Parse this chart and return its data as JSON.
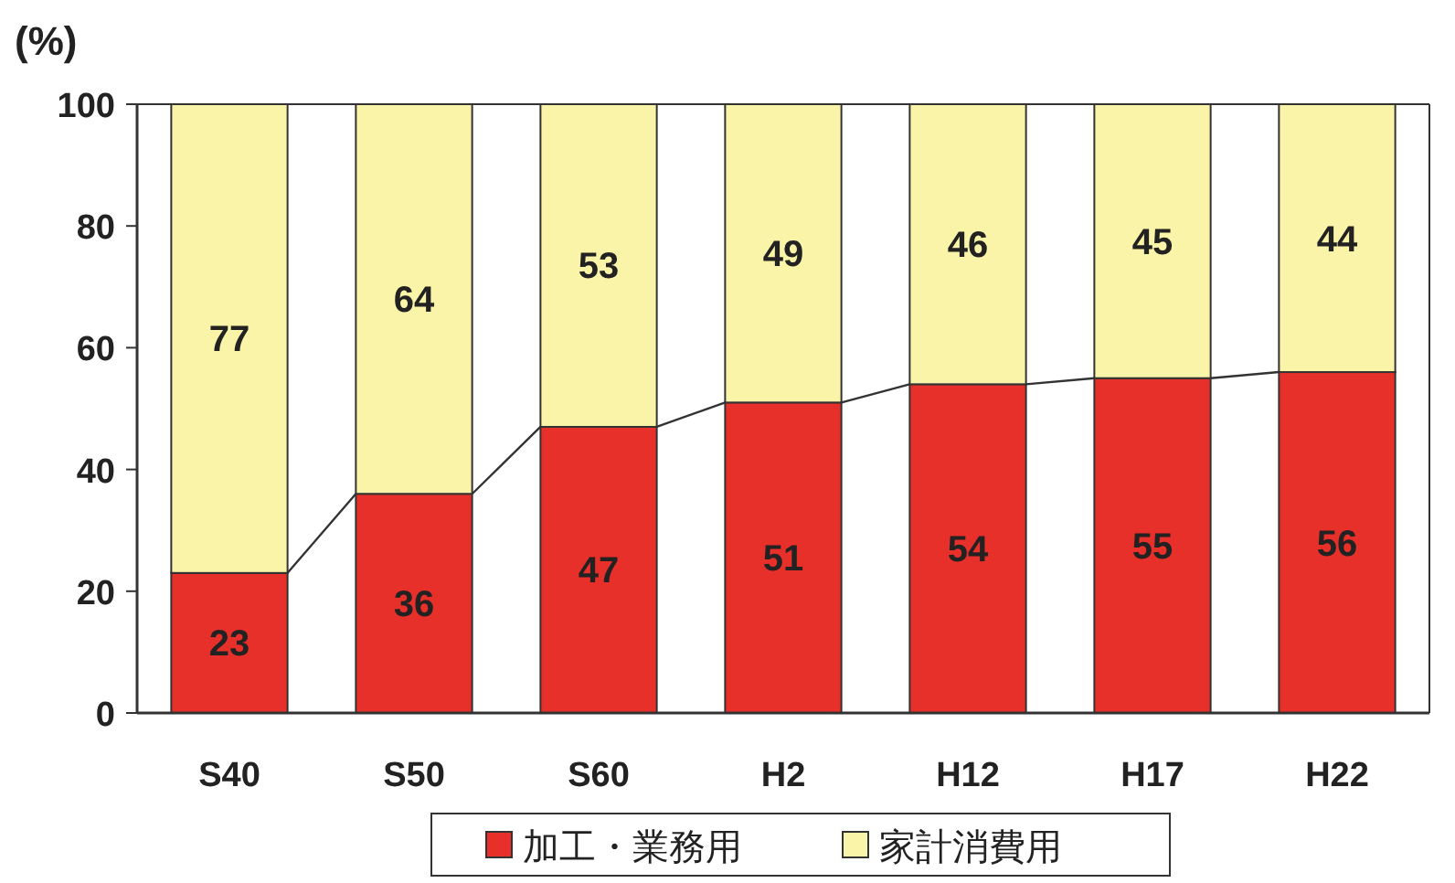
{
  "chart_data": {
    "type": "bar",
    "stacked": true,
    "ylabel": "(%)",
    "categories": [
      "S40",
      "S50",
      "S60",
      "H2",
      "H12",
      "H17",
      "H22"
    ],
    "series": [
      {
        "name": "加工・業務用",
        "color": "#e8302a",
        "values": [
          23,
          36,
          47,
          51,
          54,
          55,
          56
        ]
      },
      {
        "name": "家計消費用",
        "color": "#faf4a8",
        "values": [
          77,
          64,
          53,
          49,
          46,
          45,
          44
        ]
      }
    ],
    "ylim": [
      0,
      100
    ],
    "yticks": [
      0,
      20,
      40,
      60,
      80,
      100
    ],
    "data_labels": true,
    "grid": false,
    "legend": "bottom"
  }
}
